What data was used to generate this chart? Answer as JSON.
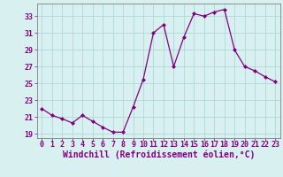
{
  "x": [
    0,
    1,
    2,
    3,
    4,
    5,
    6,
    7,
    8,
    9,
    10,
    11,
    12,
    13,
    14,
    15,
    16,
    17,
    18,
    19,
    20,
    21,
    22,
    23
  ],
  "y": [
    22.0,
    21.2,
    20.8,
    20.3,
    21.2,
    20.5,
    19.8,
    19.2,
    19.2,
    22.2,
    25.5,
    31.0,
    32.0,
    27.0,
    30.5,
    33.3,
    33.0,
    33.5,
    33.8,
    29.0,
    27.0,
    26.5,
    25.8,
    25.2
  ],
  "xlim": [
    -0.5,
    23.5
  ],
  "ylim": [
    18.5,
    34.5
  ],
  "yticks": [
    19,
    21,
    23,
    25,
    27,
    29,
    31,
    33
  ],
  "xticks": [
    0,
    1,
    2,
    3,
    4,
    5,
    6,
    7,
    8,
    9,
    10,
    11,
    12,
    13,
    14,
    15,
    16,
    17,
    18,
    19,
    20,
    21,
    22,
    23
  ],
  "xlabel": "Windchill (Refroidissement éolien,°C)",
  "line_color": "#800080",
  "marker_color": "#800080",
  "bg_color": "#d9f0f0",
  "grid_color": "#b0d8d8",
  "axis_color": "#808080",
  "text_color": "#800080",
  "font_size": 6.0,
  "xlabel_fontsize": 7.0
}
